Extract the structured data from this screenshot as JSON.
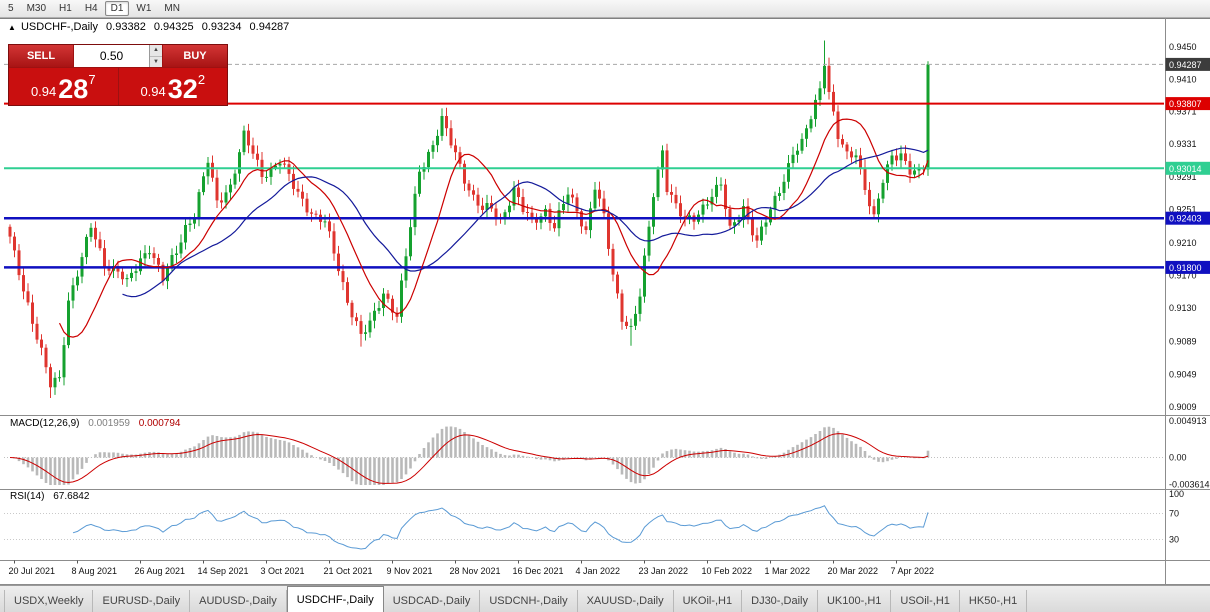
{
  "toolbar": {
    "timeframes": [
      {
        "label": "5",
        "active": false
      },
      {
        "label": "M30",
        "active": false
      },
      {
        "label": "H1",
        "active": false
      },
      {
        "label": "H4",
        "active": false
      },
      {
        "label": "D1",
        "active": true
      },
      {
        "label": "W1",
        "active": false
      },
      {
        "label": "MN",
        "active": false
      }
    ]
  },
  "chart": {
    "info": {
      "symbol": "USDCHF-,Daily",
      "open": "0.93382",
      "high": "0.94325",
      "low": "0.93234",
      "close": "0.94287"
    },
    "trade": {
      "sell_label": "SELL",
      "buy_label": "BUY",
      "volume": "0.50",
      "sell_price": {
        "base": "0.94",
        "big": "28",
        "sup": "7"
      },
      "buy_price": {
        "base": "0.94",
        "big": "32",
        "sup": "2"
      }
    }
  },
  "price_axis": {
    "labels": [
      {
        "text": "0.9450",
        "value": 0.945
      },
      {
        "text": "0.9410",
        "value": 0.941
      },
      {
        "text": "0.9371",
        "value": 0.9371
      },
      {
        "text": "0.9331",
        "value": 0.9331
      },
      {
        "text": "0.9291",
        "value": 0.9291
      },
      {
        "text": "0.9251",
        "value": 0.9251
      },
      {
        "text": "0.9210",
        "value": 0.921
      },
      {
        "text": "0.9170",
        "value": 0.917
      },
      {
        "text": "0.9130",
        "value": 0.913
      },
      {
        "text": "0.9089",
        "value": 0.9089
      },
      {
        "text": "0.9049",
        "value": 0.9049
      },
      {
        "text": "0.9009",
        "value": 0.9009
      }
    ],
    "badges": [
      {
        "text": "0.94287",
        "value": 0.94287,
        "color": "#3c3c3c"
      },
      {
        "text": "0.93807",
        "value": 0.93807,
        "color": "#dd0000"
      },
      {
        "text": "0.93014",
        "value": 0.93014,
        "color": "#2fcf92"
      },
      {
        "text": "0.92403",
        "value": 0.92403,
        "color": "#1010c0"
      },
      {
        "text": "0.91800",
        "value": 0.918,
        "color": "#1010c0"
      }
    ]
  },
  "hlines": [
    {
      "value": 0.94287,
      "color": "#a8a8a8",
      "style": "dash",
      "width": 1
    },
    {
      "value": 0.93807,
      "color": "#dd0000",
      "style": "solid",
      "width": 2
    },
    {
      "value": 0.93014,
      "color": "#2fcf92",
      "style": "solid",
      "width": 2
    },
    {
      "value": 0.92403,
      "color": "#1010c0",
      "style": "solid",
      "width": 2.5
    },
    {
      "value": 0.918,
      "color": "#1010c0",
      "style": "solid",
      "width": 2.5
    }
  ],
  "macd_panel": {
    "title": "MACD(12,26,9)",
    "value1": "0.001959",
    "value2": "0.000794",
    "axis": [
      {
        "text": "0.004913",
        "value": 0.004913
      },
      {
        "text": "0.00",
        "value": 0
      },
      {
        "text": "-0.003614",
        "value": -0.003614
      }
    ]
  },
  "rsi_panel": {
    "title": "RSI(14)",
    "value": "67.6842",
    "axis": [
      {
        "text": "100",
        "value": 100
      },
      {
        "text": "70",
        "value": 70
      },
      {
        "text": "30",
        "value": 30
      }
    ],
    "levels": [
      70,
      30
    ]
  },
  "date_axis": [
    "20 Jul 2021",
    "8 Aug 2021",
    "26 Aug 2021",
    "14 Sep 2021",
    "3 Oct 2021",
    "21 Oct 2021",
    "9 Nov 2021",
    "28 Nov 2021",
    "16 Dec 2021",
    "4 Jan 2022",
    "23 Jan 2022",
    "10 Feb 2022",
    "1 Mar 2022",
    "20 Mar 2022",
    "7 Apr 2022"
  ],
  "tabs": [
    {
      "label": "USDX,Weekly",
      "active": false
    },
    {
      "label": "EURUSD-,Daily",
      "active": false
    },
    {
      "label": "AUDUSD-,Daily",
      "active": false
    },
    {
      "label": "USDCHF-,Daily",
      "active": true
    },
    {
      "label": "USDCAD-,Daily",
      "active": false
    },
    {
      "label": "USDCNH-,Daily",
      "active": false
    },
    {
      "label": "XAUUSD-,Daily",
      "active": false
    },
    {
      "label": "UKOil-,H1",
      "active": false
    },
    {
      "label": "DJ30-,Daily",
      "active": false
    },
    {
      "label": "UK100-,H1",
      "active": false
    },
    {
      "label": "USOil-,H1",
      "active": false
    },
    {
      "label": "HK50-,H1",
      "active": false
    }
  ],
  "chart_data": {
    "type": "candlestick",
    "symbol": "USDCHF",
    "timeframe": "Daily",
    "bars": 205,
    "price_range": {
      "top": 0.945,
      "bottom": 0.9009
    },
    "last_close": 0.94287,
    "wiggle": 0.0005,
    "up_color": "#15a12f",
    "down_color": "#df352f",
    "anchors": [
      [
        0,
        0.9215
      ],
      [
        3,
        0.9155
      ],
      [
        6,
        0.9095
      ],
      [
        9,
        0.9035
      ],
      [
        11,
        0.9045
      ],
      [
        13,
        0.914
      ],
      [
        16,
        0.919
      ],
      [
        18,
        0.923
      ],
      [
        21,
        0.9185
      ],
      [
        24,
        0.9175
      ],
      [
        26,
        0.916
      ],
      [
        29,
        0.919
      ],
      [
        31,
        0.9205
      ],
      [
        34,
        0.9165
      ],
      [
        37,
        0.92
      ],
      [
        39,
        0.923
      ],
      [
        41,
        0.9245
      ],
      [
        44,
        0.931
      ],
      [
        46,
        0.926
      ],
      [
        49,
        0.928
      ],
      [
        52,
        0.934
      ],
      [
        54,
        0.932
      ],
      [
        56,
        0.9295
      ],
      [
        58,
        0.93
      ],
      [
        60,
        0.931
      ],
      [
        63,
        0.928
      ],
      [
        66,
        0.9255
      ],
      [
        68,
        0.924
      ],
      [
        70,
        0.9235
      ],
      [
        73,
        0.918
      ],
      [
        75,
        0.914
      ],
      [
        78,
        0.9095
      ],
      [
        80,
        0.911
      ],
      [
        83,
        0.915
      ],
      [
        86,
        0.912
      ],
      [
        89,
        0.923
      ],
      [
        91,
        0.93
      ],
      [
        94,
        0.933
      ],
      [
        96,
        0.936
      ],
      [
        97,
        0.9345
      ],
      [
        99,
        0.932
      ],
      [
        101,
        0.929
      ],
      [
        103,
        0.9265
      ],
      [
        105,
        0.925
      ],
      [
        107,
        0.9252
      ],
      [
        109,
        0.9238
      ],
      [
        112,
        0.9275
      ],
      [
        114,
        0.925
      ],
      [
        116,
        0.9235
      ],
      [
        119,
        0.925
      ],
      [
        121,
        0.923
      ],
      [
        124,
        0.927
      ],
      [
        126,
        0.925
      ],
      [
        128,
        0.9225
      ],
      [
        130,
        0.928
      ],
      [
        132,
        0.924
      ],
      [
        134,
        0.917
      ],
      [
        136,
        0.912
      ],
      [
        138,
        0.9105
      ],
      [
        140,
        0.9145
      ],
      [
        143,
        0.927
      ],
      [
        145,
        0.9325
      ],
      [
        146,
        0.928
      ],
      [
        148,
        0.9255
      ],
      [
        150,
        0.9235
      ],
      [
        152,
        0.924
      ],
      [
        154,
        0.9255
      ],
      [
        156,
        0.927
      ],
      [
        158,
        0.928
      ],
      [
        160,
        0.9225
      ],
      [
        163,
        0.9255
      ],
      [
        166,
        0.921
      ],
      [
        169,
        0.925
      ],
      [
        172,
        0.929
      ],
      [
        174,
        0.932
      ],
      [
        176,
        0.933
      ],
      [
        178,
        0.9365
      ],
      [
        180,
        0.94
      ],
      [
        181,
        0.9435
      ],
      [
        182,
        0.9395
      ],
      [
        184,
        0.934
      ],
      [
        186,
        0.9315
      ],
      [
        188,
        0.932
      ],
      [
        190,
        0.928
      ],
      [
        192,
        0.924
      ],
      [
        194,
        0.9285
      ],
      [
        196,
        0.9315
      ],
      [
        198,
        0.932
      ],
      [
        200,
        0.93
      ],
      [
        202,
        0.9295
      ],
      [
        203,
        0.93
      ],
      [
        204,
        0.94287
      ]
    ],
    "high_overrides": {
      "181": 0.9458,
      "204": 0.94325
    },
    "low_overrides": {
      "9": 0.902,
      "78": 0.9083,
      "138": 0.9084
    },
    "ma_fast": {
      "period": 12,
      "color": "#cc0000"
    },
    "ma_slow": {
      "period": 26,
      "color": "#141a9a"
    },
    "macd": {
      "fast": 12,
      "slow": 26,
      "signal": 9,
      "hist_color": "#b9b9b9",
      "signal_color": "#cc0000",
      "range": {
        "top": 0.004913,
        "bottom": -0.003614
      }
    },
    "rsi": {
      "period": 14,
      "color": "#5b9bd5",
      "last": 67.6842
    },
    "date_ticks": [
      1,
      15,
      29,
      43,
      57,
      71,
      85,
      99,
      113,
      127,
      141,
      155,
      169,
      183,
      197
    ]
  }
}
